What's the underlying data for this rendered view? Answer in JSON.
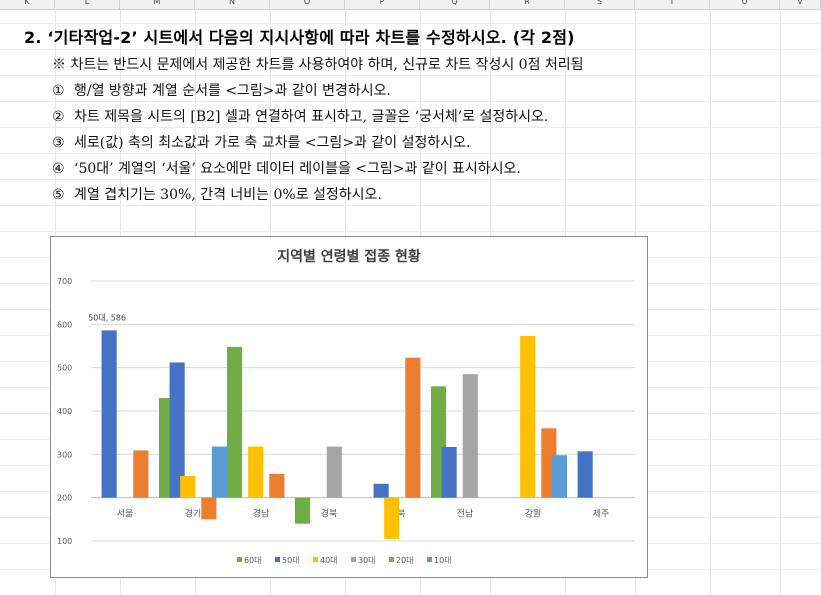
{
  "sheet": {
    "columns": [
      "K",
      "L",
      "M",
      "N",
      "O",
      "P",
      "Q",
      "R",
      "S",
      "T",
      "U",
      "V"
    ]
  },
  "question": {
    "title": "2. ‘기타작업-2’ 시트에서 다음의 지시사항에 따라 차트를 수정하시오. (각 2점)",
    "note": "※ 차트는 반드시 문제에서 제공한 차트를 사용하여야 하며, 신규로 차트 작성시 0점 처리됨",
    "items": [
      {
        "mark": "①",
        "text": "행/열 방향과 계열 순서를 <그림>과 같이 변경하시오."
      },
      {
        "mark": "②",
        "text": "차트 제목을 시트의 [B2] 셀과 연결하여 표시하고, 글꼴은 ‘궁서체’로 설정하시오."
      },
      {
        "mark": "③",
        "text": "세로(값) 축의 최소값과 가로 축 교차를 <그림>과 같이 설정하시오."
      },
      {
        "mark": "④",
        "text": "‘50대’ 계열의 ‘서울’ 요소에만 데이터 레이블을 <그림>과 같이 표시하시오."
      },
      {
        "mark": "⑤",
        "text": "계열 겹치기는 30%, 간격 너비는 0%로 설정하시오."
      }
    ]
  },
  "chart_data": {
    "type": "bar",
    "title": "지역별 연령별 접종 현황",
    "categories": [
      "서울",
      "경기",
      "경남",
      "경북",
      "전북",
      "전남",
      "강원",
      "제주"
    ],
    "ylim": [
      100,
      700
    ],
    "yticks": [
      100,
      200,
      300,
      400,
      500,
      600,
      700
    ],
    "crosses_at": 200,
    "grid": true,
    "legend_position": "bottom",
    "series": [
      {
        "name": "60대",
        "color": "#70ad47",
        "values": [
          null,
          430,
          548,
          140,
          null,
          457,
          null,
          null
        ]
      },
      {
        "name": "50대",
        "color": "#4472c4",
        "values": [
          586,
          512,
          null,
          null,
          232,
          317,
          null,
          307
        ]
      },
      {
        "name": "40대",
        "color": "#ffc000",
        "values": [
          null,
          250,
          318,
          null,
          105,
          null,
          573,
          null
        ]
      },
      {
        "name": "30대",
        "color": "#a5a5a5",
        "values": [
          null,
          null,
          null,
          318,
          null,
          485,
          null,
          null
        ]
      },
      {
        "name": "20대",
        "color": "#ed7d31",
        "values": [
          309,
          150,
          255,
          null,
          523,
          null,
          360,
          null
        ]
      },
      {
        "name": "10대",
        "color": "#5b9bd5",
        "values": [
          null,
          318,
          null,
          null,
          null,
          null,
          298,
          null
        ]
      }
    ],
    "data_label": {
      "series": "50대",
      "category": "서울",
      "text": "50대, 586"
    }
  }
}
